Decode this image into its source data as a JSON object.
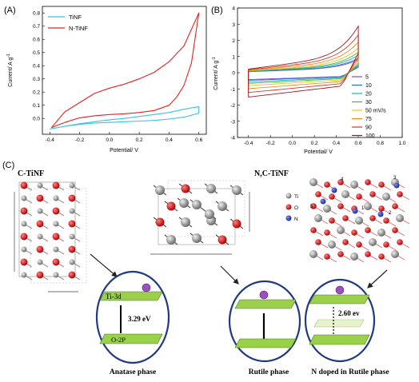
{
  "panel_a": {
    "label": "(A)",
    "legend": [
      {
        "name": "TiNF",
        "color": "#39c0e6"
      },
      {
        "name": "N-TiNF",
        "color": "#e32222"
      }
    ],
    "xlabel": "Potential/ V",
    "ylabel": "Current/ A g",
    "ylabel_sup": "-1",
    "xticks": [
      "-0.4",
      "-0.2",
      "0.0",
      "0.2",
      "0.4",
      "0.6"
    ],
    "yticks": [
      "0.0",
      "0.1",
      "0.2",
      "0.3",
      "0.4",
      "0.5",
      "0.6",
      "0.7",
      "0.8"
    ]
  },
  "panel_b": {
    "label": "(B)",
    "xlabel": "Potential/ V",
    "ylabel": "Current/ A g",
    "ylabel_sup": "-1",
    "xticks": [
      "-0.4",
      "-0.2",
      "0.0",
      "0.2",
      "0.4",
      "0.6",
      "0.8",
      "1.0"
    ],
    "yticks": [
      "4",
      "3",
      "2",
      "1",
      "0",
      "-1",
      "-2",
      "-3",
      "-4"
    ],
    "legend_unit": "mV/s"
  },
  "panel_c": {
    "label": "(C)",
    "left_title": "C-TiNF",
    "right_title": "N,C-TiNF",
    "atom_legend": [
      "Ti",
      "O",
      "N"
    ],
    "site_labels": [
      "4",
      "3",
      "5",
      "1",
      "2"
    ],
    "anatase": {
      "top": "Ti-3d",
      "bottom": "O-2P",
      "gap": "3.29 eV",
      "caption": "Anatase phase"
    },
    "rutile": {
      "caption": "Rutile phase"
    },
    "ndoped": {
      "gap": "2.60 ev",
      "caption": "N doped in Rutile phase"
    }
  },
  "chart_data": [
    {
      "type": "line",
      "title": "",
      "xlabel": "Potential/ V",
      "ylabel": "Current/ A g-1",
      "xlim": [
        -0.45,
        0.65
      ],
      "ylim": [
        -0.12,
        0.85
      ],
      "grid": false,
      "legend": "top-left",
      "series": [
        {
          "name": "TiNF",
          "color": "#39c0e6",
          "x": [
            -0.4,
            -0.3,
            -0.2,
            -0.1,
            0.0,
            0.1,
            0.2,
            0.3,
            0.4,
            0.5,
            0.6,
            0.6,
            0.5,
            0.4,
            0.3,
            0.2,
            0.1,
            0.0,
            -0.1,
            -0.2,
            -0.3,
            -0.4
          ],
          "y": [
            -0.08,
            -0.06,
            -0.045,
            -0.035,
            -0.03,
            -0.025,
            -0.02,
            -0.015,
            -0.005,
            0.01,
            0.04,
            0.09,
            0.07,
            0.045,
            0.03,
            0.015,
            0.0,
            -0.01,
            -0.025,
            -0.04,
            -0.06,
            -0.08
          ]
        },
        {
          "name": "N-TiNF",
          "color": "#e32222",
          "x": [
            -0.39,
            -0.3,
            -0.2,
            -0.1,
            0.0,
            0.1,
            0.2,
            0.3,
            0.4,
            0.5,
            0.6,
            0.55,
            0.5,
            0.45,
            0.4,
            0.3,
            0.2,
            0.1,
            0.0,
            -0.1,
            -0.2,
            -0.3,
            -0.39
          ],
          "y": [
            -0.07,
            0.05,
            0.12,
            0.19,
            0.23,
            0.26,
            0.3,
            0.35,
            0.43,
            0.55,
            0.8,
            0.42,
            0.25,
            0.16,
            0.1,
            0.06,
            0.045,
            0.035,
            0.03,
            0.02,
            0.005,
            -0.03,
            -0.07
          ]
        }
      ]
    },
    {
      "type": "line",
      "title": "",
      "xlabel": "Potential/ V",
      "ylabel": "Current/ A g-1",
      "xlim": [
        -0.5,
        1.0
      ],
      "ylim": [
        -4,
        4
      ],
      "grid": false,
      "legend": "right",
      "series": [
        {
          "name": "5",
          "color": "#7a4bd6",
          "amp": 0.9
        },
        {
          "name": "10",
          "color": "#2f6fe0",
          "amp": 1.0
        },
        {
          "name": "20",
          "color": "#1fb2a6",
          "amp": 1.2
        },
        {
          "name": "30",
          "color": "#38b93a",
          "amp": 1.4
        },
        {
          "name": "50",
          "color": "#e6c521",
          "amp": 1.7
        },
        {
          "name": "75",
          "color": "#f08a24",
          "amp": 2.1
        },
        {
          "name": "90",
          "color": "#d23a2a",
          "amp": 2.6
        },
        {
          "name": "100",
          "color": "#9a1a20",
          "amp": 3.2
        }
      ]
    }
  ]
}
